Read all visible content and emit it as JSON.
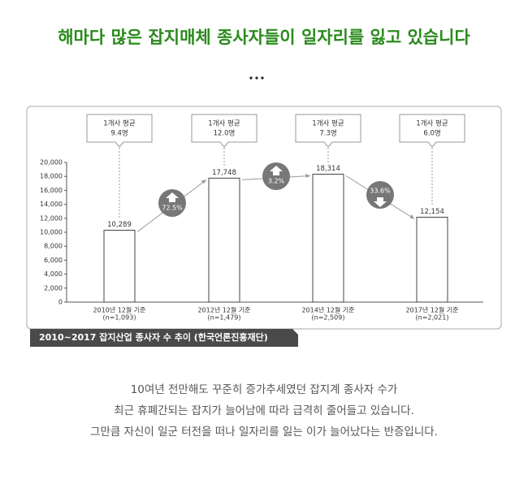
{
  "headline": "해마다 많은 잡지매체 종사자들이 일자리를 잃고 있습니다",
  "chart_data": {
    "type": "bar",
    "categories": [
      "2010년 12월 기준",
      "2012년 12월 기준",
      "2014년 12월 기준",
      "2017년 12월 기준"
    ],
    "sample_sizes": [
      "(n=1,093)",
      "(n=1,479)",
      "(n=2,509)",
      "(n=2,021)"
    ],
    "values": [
      10289,
      17748,
      18314,
      12154
    ],
    "value_labels": [
      "10,289",
      "17,748",
      "18,314",
      "12,154"
    ],
    "color": "#ffffff",
    "ylim": [
      0,
      20000
    ],
    "yticks": [
      0,
      {
        "value": 2000,
        "label": "2,000"
      },
      {
        "value": 4000,
        "label": "4,000"
      },
      {
        "value": 6000,
        "label": "6,000"
      },
      {
        "value": 8000,
        "label": "8,000"
      },
      {
        "value": 10000,
        "label": "10,000"
      },
      {
        "value": 12000,
        "label": "12,000"
      },
      {
        "value": 14000,
        "label": "14,000"
      },
      {
        "value": 16000,
        "label": "16,000"
      },
      {
        "value": 18000,
        "label": "18,000"
      },
      {
        "value": 20000,
        "label": "20,000"
      }
    ],
    "callouts": [
      {
        "label": "1개사 평균",
        "value": "9.4명"
      },
      {
        "label": "1개사 평균",
        "value": "12.0명"
      },
      {
        "label": "1개사 평균",
        "value": "7.3명"
      },
      {
        "label": "1개사 평균",
        "value": "6.0명"
      }
    ],
    "changes": [
      {
        "label": "72.5%",
        "direction": "up"
      },
      {
        "label": "3.2%",
        "direction": "up"
      },
      {
        "label": "33.6%",
        "direction": "down"
      }
    ],
    "caption": "2010~2017 잡지산업 종사자 수 추이 (한국언론진흥재단)"
  },
  "body": [
    "10여년 전만해도 꾸준히 증가추세였던 잡지계 종사자 수가",
    "최근 휴폐간되는 잡지가 늘어남에 따라 급격히 줄어들고 있습니다.",
    "그만큼 자신이 일군 터전을 떠나 일자리를 잃는 이가 늘어났다는 반증입니다."
  ]
}
